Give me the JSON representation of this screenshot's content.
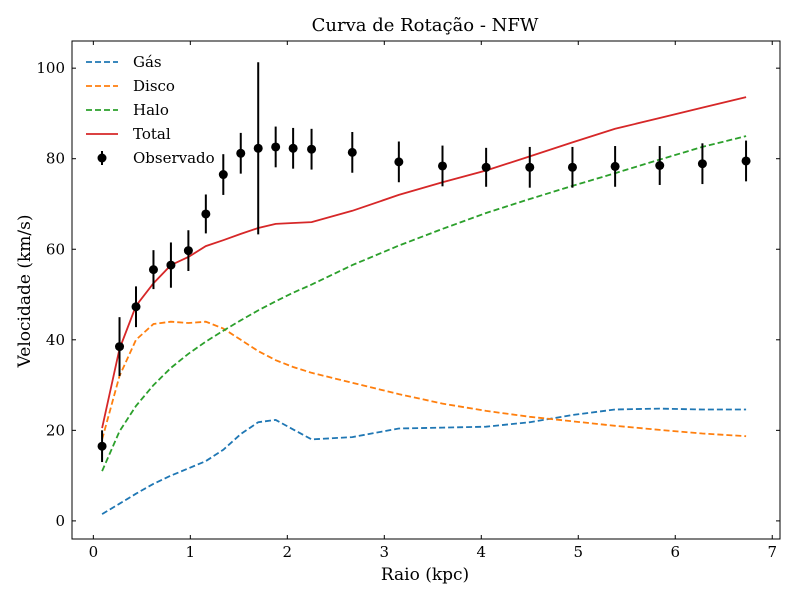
{
  "chart_data": {
    "type": "line",
    "title": "Curva de Rotação - NFW",
    "xlabel": "Raio (kpc)",
    "ylabel": "Velocidade (km/s)",
    "xlim": [
      -0.22,
      7.08
    ],
    "ylim": [
      -4,
      106
    ],
    "xticks": [
      0,
      1,
      2,
      3,
      4,
      5,
      6,
      7
    ],
    "yticks": [
      0,
      20,
      40,
      60,
      80,
      100
    ],
    "grid": false,
    "legend_position": "top-left",
    "series": [
      {
        "name": "Gás",
        "style": "dashed",
        "color": "#1f77b4",
        "x": [
          0.09,
          0.27,
          0.44,
          0.62,
          0.8,
          0.98,
          1.16,
          1.34,
          1.52,
          1.7,
          1.88,
          2.06,
          2.25,
          2.67,
          3.15,
          3.6,
          4.05,
          4.5,
          4.94,
          5.38,
          5.84,
          6.28,
          6.73
        ],
        "y": [
          1.5,
          3.8,
          6.0,
          8.2,
          10.0,
          11.6,
          13.2,
          15.7,
          19.2,
          21.8,
          22.3,
          20.2,
          18.0,
          18.5,
          20.4,
          20.6,
          20.8,
          21.8,
          23.4,
          24.6,
          24.8,
          24.6,
          24.6
        ]
      },
      {
        "name": "Disco",
        "style": "dashed",
        "color": "#ff7f0e",
        "x": [
          0.09,
          0.27,
          0.44,
          0.62,
          0.8,
          0.98,
          1.16,
          1.34,
          1.52,
          1.7,
          1.88,
          2.06,
          2.25,
          2.67,
          3.15,
          3.6,
          4.05,
          4.5,
          4.94,
          5.38,
          5.84,
          6.28,
          6.73
        ],
        "y": [
          18.0,
          32.0,
          40.0,
          43.5,
          44.0,
          43.7,
          44.0,
          42.5,
          40.0,
          37.5,
          35.5,
          34.0,
          32.7,
          30.5,
          28.0,
          25.9,
          24.3,
          23.0,
          22.0,
          21.0,
          20.1,
          19.3,
          18.7
        ]
      },
      {
        "name": "Halo",
        "style": "dashed",
        "color": "#2ca02c",
        "x": [
          0.09,
          0.27,
          0.44,
          0.62,
          0.8,
          0.98,
          1.16,
          1.34,
          1.52,
          1.7,
          1.88,
          2.06,
          2.25,
          2.67,
          3.15,
          3.6,
          4.05,
          4.5,
          4.94,
          5.38,
          5.84,
          6.28,
          6.73
        ],
        "y": [
          11.0,
          19.8,
          25.4,
          30.0,
          33.8,
          36.9,
          39.6,
          42.0,
          44.3,
          46.5,
          48.5,
          50.4,
          52.2,
          56.5,
          60.8,
          64.5,
          68.0,
          71.1,
          74.0,
          76.8,
          79.8,
          82.6,
          85.0
        ]
      },
      {
        "name": "Total",
        "style": "solid",
        "color": "#d62728",
        "x": [
          0.09,
          0.27,
          0.44,
          0.62,
          0.8,
          0.98,
          1.16,
          1.34,
          1.52,
          1.7,
          1.88,
          2.06,
          2.25,
          2.67,
          3.15,
          3.6,
          4.05,
          4.5,
          4.94,
          5.38,
          5.84,
          6.28,
          6.73
        ],
        "y": [
          20.5,
          38.0,
          47.5,
          52.5,
          56.5,
          58.3,
          60.7,
          62.0,
          63.4,
          64.7,
          65.6,
          65.8,
          66.0,
          68.5,
          72.0,
          74.8,
          77.4,
          80.5,
          83.6,
          86.6,
          89.0,
          91.3,
          93.6
        ]
      }
    ],
    "observed": {
      "name": "Observado",
      "color": "#000000",
      "x": [
        0.09,
        0.27,
        0.44,
        0.62,
        0.8,
        0.98,
        1.16,
        1.34,
        1.52,
        1.7,
        1.88,
        2.06,
        2.25,
        2.67,
        3.15,
        3.6,
        4.05,
        4.5,
        4.94,
        5.38,
        5.84,
        6.28,
        6.73
      ],
      "y": [
        16.5,
        38.5,
        47.3,
        55.5,
        56.5,
        59.7,
        67.8,
        76.5,
        81.2,
        82.3,
        82.6,
        82.3,
        82.1,
        81.4,
        79.3,
        78.4,
        78.1,
        78.1,
        78.1,
        78.3,
        78.5,
        78.9,
        79.5
      ],
      "err": [
        3.5,
        6.5,
        4.5,
        4.3,
        5.0,
        4.5,
        4.3,
        4.5,
        4.5,
        19.0,
        4.5,
        4.5,
        4.5,
        4.5,
        4.5,
        4.5,
        4.3,
        4.5,
        4.5,
        4.5,
        4.3,
        4.5,
        4.5
      ]
    }
  }
}
